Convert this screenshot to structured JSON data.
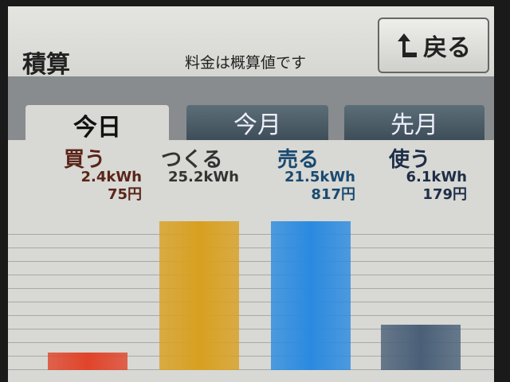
{
  "header": {
    "title": "積算",
    "note": "料金は概算値です",
    "back_label": "戻る",
    "back_icon": "arrow-up-left-icon"
  },
  "tabs": [
    {
      "label": "今日",
      "active": true
    },
    {
      "label": "今月",
      "active": false
    },
    {
      "label": "先月",
      "active": false
    }
  ],
  "chart_data": {
    "type": "bar",
    "categories": [
      "買う",
      "つくる",
      "売る",
      "使う"
    ],
    "values_kwh": [
      2.4,
      25.2,
      21.5,
      6.1
    ],
    "display": {
      "kwh": [
        "2.4kWh",
        "25.2kWh",
        "21.5kWh",
        "6.1kWh"
      ],
      "yen": [
        "75円",
        "",
        "817円",
        "179円"
      ]
    },
    "colors": [
      "#e0442a",
      "#d8a020",
      "#2a8ae0",
      "#4a6078"
    ],
    "text_colors": [
      "#5a2418",
      "#333333",
      "#1a4a70",
      "#1e2e48"
    ],
    "ylim": [
      0,
      20
    ],
    "grid": true
  }
}
